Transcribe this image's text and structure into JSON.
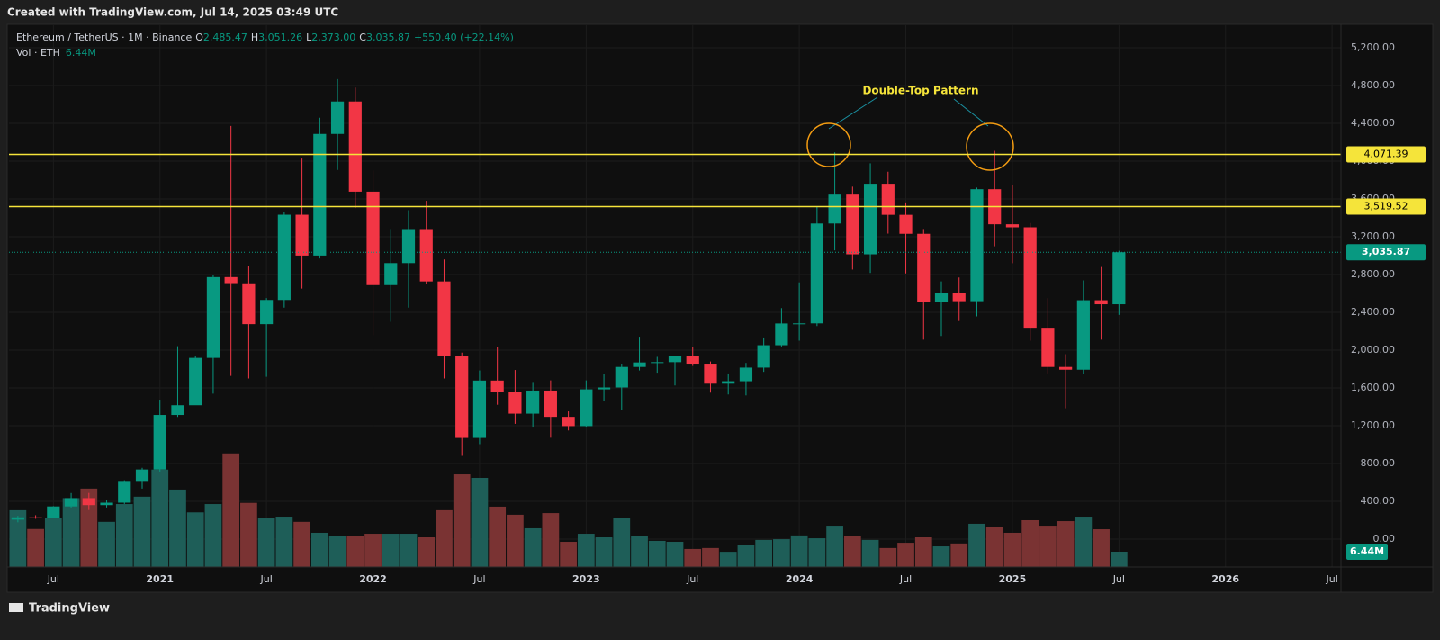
{
  "header": {
    "created": "Created with TradingView.com, Jul 14, 2025 03:49 UTC",
    "logo": "TradingView"
  },
  "chart_data": {
    "type": "candlestick",
    "symbol": "Ethereum / TetherUS · 1M · Binance",
    "ohlc_legend": [
      {
        "key": "O",
        "value": "2,485.47"
      },
      {
        "key": "H",
        "value": "3,051.26"
      },
      {
        "key": "L",
        "value": "2,373.00"
      },
      {
        "key": "C",
        "value": "3,035.87"
      }
    ],
    "change": "+550.40 (+22.14%)",
    "x": [
      "2020-05",
      "2020-06",
      "2020-07",
      "2020-08",
      "2020-09",
      "2020-10",
      "2020-11",
      "2020-12",
      "2021-01",
      "2021-02",
      "2021-03",
      "2021-04",
      "2021-05",
      "2021-06",
      "2021-07",
      "2021-08",
      "2021-09",
      "2021-10",
      "2021-11",
      "2021-12",
      "2022-01",
      "2022-02",
      "2022-03",
      "2022-04",
      "2022-05",
      "2022-06",
      "2022-07",
      "2022-08",
      "2022-09",
      "2022-10",
      "2022-11",
      "2022-12",
      "2023-01",
      "2023-02",
      "2023-03",
      "2023-04",
      "2023-05",
      "2023-06",
      "2023-07",
      "2023-08",
      "2023-09",
      "2023-10",
      "2023-11",
      "2023-12",
      "2024-01",
      "2024-02",
      "2024-03",
      "2024-04",
      "2024-05",
      "2024-06",
      "2024-07",
      "2024-08",
      "2024-09",
      "2024-10",
      "2024-11",
      "2024-12",
      "2025-01",
      "2025-02",
      "2025-03",
      "2025-04",
      "2025-05",
      "2025-06",
      "2025-07"
    ],
    "open": [
      206,
      231,
      226,
      346,
      434,
      360,
      386,
      616,
      737,
      1314,
      1417,
      1918,
      2773,
      2707,
      2275,
      2531,
      3433,
      3001,
      4288,
      4631,
      3677,
      2688,
      2921,
      3281,
      2727,
      1941,
      1071,
      1678,
      1553,
      1328,
      1572,
      1294,
      1196,
      1585,
      1605,
      1822,
      1870,
      1873,
      1934,
      1857,
      1645,
      1671,
      1815,
      2052,
      2282,
      2283,
      3340,
      3646,
      3014,
      3761,
      3432,
      3231,
      2512,
      2602,
      2518,
      3703,
      3332,
      3300,
      2237,
      1822,
      1793,
      2528,
      2485.47
    ],
    "high": [
      246,
      253,
      349,
      488,
      489,
      418,
      623,
      755,
      1476,
      2042,
      1943,
      2797,
      4372,
      2891,
      2551,
      3466,
      4027,
      4460,
      4868,
      4778,
      3900,
      3282,
      3481,
      3580,
      2960,
      1974,
      1785,
      2030,
      1790,
      1663,
      1680,
      1352,
      1680,
      1743,
      1857,
      2142,
      1929,
      1930,
      2029,
      1880,
      1753,
      1865,
      2134,
      2445,
      2717,
      3523,
      4093,
      3730,
      3977,
      3888,
      3563,
      3282,
      2727,
      2769,
      3720,
      4109,
      3745,
      3345,
      2550,
      1957,
      2738,
      2880,
      3051.26
    ],
    "low": [
      178,
      215,
      222,
      334,
      308,
      335,
      372,
      535,
      715,
      1293,
      1439,
      1540,
      1728,
      1700,
      1718,
      2450,
      2651,
      2970,
      3907,
      3503,
      2159,
      2300,
      2450,
      2700,
      1700,
      881,
      1005,
      1422,
      1220,
      1190,
      1073,
      1150,
      1190,
      1461,
      1368,
      1785,
      1761,
      1626,
      1833,
      1550,
      1531,
      1521,
      1770,
      2039,
      2100,
      2255,
      3056,
      2853,
      2817,
      3233,
      2812,
      2111,
      2150,
      2308,
      2357,
      3099,
      2920,
      2100,
      1754,
      1385,
      1752,
      2111,
      2373
    ],
    "close": [
      231,
      226,
      346,
      434,
      360,
      386,
      616,
      737,
      1314,
      1417,
      1918,
      2773,
      2709,
      2275,
      2531,
      3433,
      3001,
      4288,
      4631,
      3677,
      2688,
      2921,
      3281,
      2727,
      1941,
      1071,
      1678,
      1553,
      1328,
      1572,
      1294,
      1196,
      1585,
      1605,
      1822,
      1870,
      1873,
      1934,
      1857,
      1645,
      1671,
      1815,
      2052,
      2282,
      2283,
      3340,
      3646,
      3014,
      3761,
      3432,
      3231,
      2512,
      2602,
      2518,
      3703,
      3332,
      3300,
      2237,
      1822,
      1793,
      2528,
      2485.47,
      3035.87
    ],
    "up_color": "#089981",
    "down_color": "#f23645",
    "volume": {
      "name": "Vol · ETH",
      "label": "6.44M",
      "values": [
        23.9,
        16,
        20.5,
        29,
        33,
        19,
        26.5,
        29.6,
        41,
        32.6,
        23,
        26.5,
        47.8,
        27,
        20.8,
        21.2,
        19,
        14.4,
        12.9,
        12.9,
        14,
        14,
        14,
        12.5,
        23.9,
        39,
        37.5,
        25.4,
        22,
        16.3,
        22.7,
        10.6,
        14,
        12.5,
        20.5,
        13,
        11,
        10.6,
        7.6,
        8,
        6.4,
        9.1,
        11.4,
        11.7,
        13.3,
        12.1,
        17.4,
        12.9,
        11.4,
        8,
        10.2,
        12.5,
        8.7,
        9.9,
        18.2,
        16.7,
        14.4,
        19.7,
        17.4,
        19.3,
        21.2,
        15.9,
        6.44
      ],
      "ylim": [
        0,
        228
      ],
      "up_color": "#1e5e58",
      "down_color": "#7a3333"
    },
    "ylim": [
      -295,
      5438
    ],
    "yticks": [
      {
        "value": 0,
        "label": "0.00"
      },
      {
        "value": 400,
        "label": "400.00"
      },
      {
        "value": 800,
        "label": "800.00"
      },
      {
        "value": 1200,
        "label": "1,200.00"
      },
      {
        "value": 1600,
        "label": "1,600.00"
      },
      {
        "value": 2000,
        "label": "2,000.00"
      },
      {
        "value": 2400,
        "label": "2,400.00"
      },
      {
        "value": 2800,
        "label": "2,800.00"
      },
      {
        "value": 3200,
        "label": "3,200.00"
      },
      {
        "value": 3600,
        "label": "3,600.00"
      },
      {
        "value": 4000,
        "label": "4,000.00"
      },
      {
        "value": 4400,
        "label": "4,400.00"
      },
      {
        "value": 4800,
        "label": "4,800.00"
      },
      {
        "value": 5200,
        "label": "5,200.00"
      }
    ],
    "xlim": [
      "2020-05",
      "2026-07"
    ],
    "xticks": [
      {
        "value": "2020-07",
        "label": "Jul"
      },
      {
        "value": "2021-01",
        "label": "2021"
      },
      {
        "value": "2021-07",
        "label": "Jul"
      },
      {
        "value": "2022-01",
        "label": "2022"
      },
      {
        "value": "2022-07",
        "label": "Jul"
      },
      {
        "value": "2023-01",
        "label": "2023"
      },
      {
        "value": "2023-07",
        "label": "Jul"
      },
      {
        "value": "2024-01",
        "label": "2024"
      },
      {
        "value": "2024-07",
        "label": "Jul"
      },
      {
        "value": "2025-01",
        "label": "2025"
      },
      {
        "value": "2025-07",
        "label": "Jul"
      },
      {
        "value": "2026-01",
        "label": "2026"
      },
      {
        "value": "2026-07",
        "label": "Jul"
      }
    ],
    "hlines": [
      {
        "value": 4071.39,
        "label": "4,071.39",
        "color": "#f5e43a"
      },
      {
        "value": 3519.52,
        "label": "3,519.52",
        "color": "#f5e43a"
      }
    ],
    "last_price": {
      "value": 3035.87,
      "label": "3,035.87",
      "color": "#089981"
    },
    "annotation": "Double-Top Pattern",
    "grid": true
  }
}
